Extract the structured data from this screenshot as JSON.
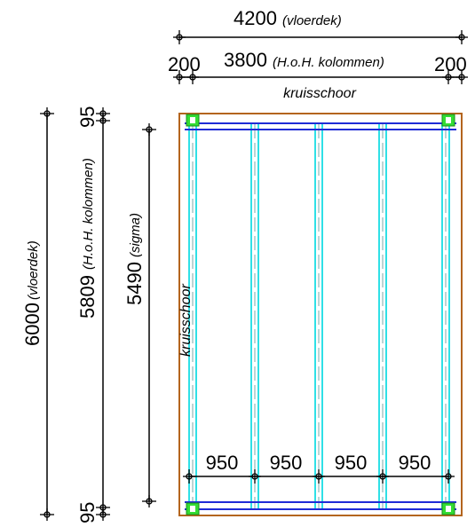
{
  "dimensions": {
    "top_overall": {
      "value": "4200",
      "note": "(vloerdek)"
    },
    "top_columns": {
      "value": "3800",
      "note": "(H.o.H. kolommen)"
    },
    "top_left_edge": "200",
    "top_right_edge": "200",
    "left_overall": {
      "value": "6000",
      "note": "(vloerdek)"
    },
    "left_columns": {
      "value": "5809",
      "note": "(H.o.H. kolommen)"
    },
    "left_top_edge": "95",
    "left_bottom_edge": "95",
    "left_sigma": {
      "value": "5490",
      "note": "(sigma)"
    },
    "bottom_spacings": [
      "950",
      "950",
      "950",
      "950"
    ]
  },
  "labels": {
    "brace_top": "kruisschoor",
    "brace_side": "kruisschoor"
  },
  "colors": {
    "floor_outline": "#b4651e",
    "beam": "#1f2bd6",
    "joist": "#2fe0e6",
    "column": "#33dd33",
    "dimension": "#000000"
  }
}
